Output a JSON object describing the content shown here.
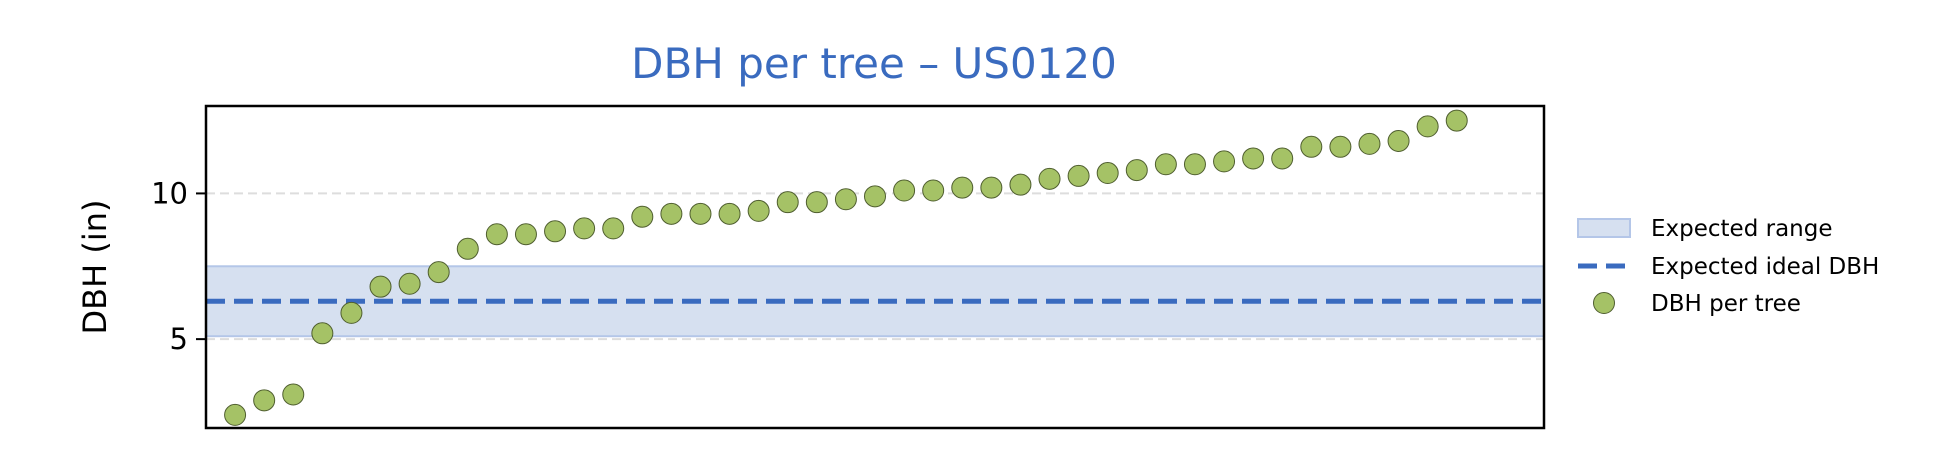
{
  "chart_data": {
    "type": "scatter",
    "title": "DBH per tree – US0120",
    "xlabel": "",
    "ylabel": "DBH (in)",
    "ylim": [
      1.95,
      13.0
    ],
    "xlim": [
      -1.0,
      45.0
    ],
    "yticks": [
      5,
      10
    ],
    "x_ticks_shown": false,
    "grid": "horizontal dashed",
    "legend_position": "right",
    "expected_range": [
      5.1,
      7.5
    ],
    "expected_ideal": 6.3,
    "series": [
      {
        "name": "DBH per tree",
        "values": [
          2.4,
          2.9,
          3.1,
          5.2,
          5.9,
          6.8,
          6.9,
          7.3,
          8.1,
          8.6,
          8.6,
          8.7,
          8.8,
          8.8,
          9.2,
          9.3,
          9.3,
          9.3,
          9.4,
          9.7,
          9.7,
          9.8,
          9.9,
          10.1,
          10.1,
          10.2,
          10.2,
          10.3,
          10.5,
          10.6,
          10.7,
          10.8,
          11.0,
          11.0,
          11.1,
          11.2,
          11.2,
          11.6,
          11.6,
          11.7,
          11.8,
          12.3,
          12.5
        ]
      }
    ],
    "legend": [
      {
        "label": "Expected range",
        "kind": "band"
      },
      {
        "label": "Expected ideal DBH",
        "kind": "dashed-line"
      },
      {
        "label": "DBH per tree",
        "kind": "marker"
      }
    ],
    "colors": {
      "title": "#3a6bbf",
      "band_fill": "#d6e0f0",
      "band_edge": "#b4c6e8",
      "ideal_line": "#3a6bbf",
      "marker_fill": "#a5c266",
      "marker_edge": "#4f5e2f",
      "grid": "#dddddd"
    }
  }
}
